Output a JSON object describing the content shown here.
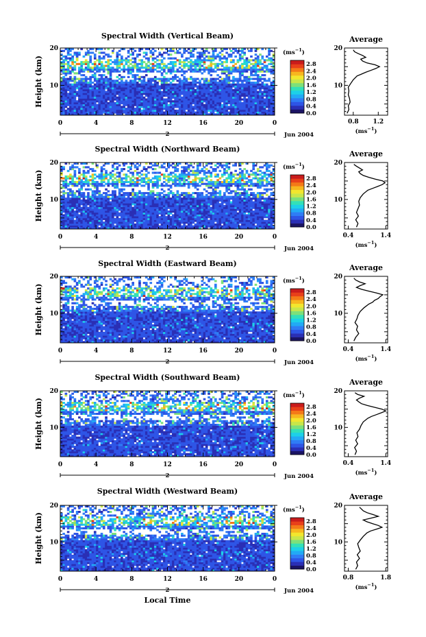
{
  "figure": {
    "xlabel": "Local Time",
    "date_label": "Jun 2004",
    "day_label": "2"
  },
  "colorbar": {
    "unit_base": "(ms",
    "unit_exp": "−1",
    "unit_close": ")",
    "ticks": [
      "2.8",
      "2.4",
      "2.0",
      "1.6",
      "1.2",
      "0.8",
      "0.4",
      "0.0"
    ],
    "range": [
      0.0,
      3.0
    ],
    "colors": [
      "#1b1464",
      "#2a2fb5",
      "#2e55e6",
      "#2f7df5",
      "#22aaf5",
      "#1dd0e8",
      "#33e0b8",
      "#7de07a",
      "#c8e64a",
      "#f2e62e",
      "#f7b71f",
      "#f47a18",
      "#e8401a",
      "#c91c1c"
    ]
  },
  "avg_unit": {
    "base": "(ms",
    "exp": "−1",
    "close": ")"
  },
  "chart_data": [
    {
      "type": "heatmap",
      "title": "Spectral Width (Vertical Beam)",
      "ylabel": "Height (km)",
      "x_ticks": [
        "0",
        "4",
        "8",
        "12",
        "16",
        "20",
        "0"
      ],
      "xlim": [
        0,
        24
      ],
      "y_ticks": [
        "20",
        "10"
      ],
      "ylim": [
        2,
        20
      ],
      "avg": {
        "title": "Average",
        "x_ticks": [
          "0.8",
          "1.2"
        ],
        "xlim": [
          0.66,
          1.35
        ],
        "heights": [
          2.5,
          3.5,
          4.5,
          5.5,
          6.5,
          7.5,
          8.5,
          9.5,
          10.5,
          11.5,
          12.5,
          13.0,
          13.5,
          14.0,
          14.5,
          15.0,
          15.5,
          16.0,
          16.5,
          17.0,
          17.5,
          18.0,
          18.5,
          19.0,
          19.5
        ],
        "values": [
          0.7,
          0.73,
          0.72,
          0.75,
          0.74,
          0.72,
          0.73,
          0.72,
          0.76,
          0.8,
          0.86,
          0.93,
          1.0,
          1.08,
          1.16,
          1.22,
          1.15,
          1.02,
          0.95,
          0.92,
          1.0,
          0.95,
          0.88,
          0.82,
          0.8
        ]
      }
    },
    {
      "type": "heatmap",
      "title": "Spectral Width (Northward Beam)",
      "ylabel": "Height (km)",
      "x_ticks": [
        "0",
        "4",
        "8",
        "12",
        "16",
        "20",
        "0"
      ],
      "xlim": [
        0,
        24
      ],
      "y_ticks": [
        "20",
        "10"
      ],
      "ylim": [
        2,
        20
      ],
      "avg": {
        "title": "Average",
        "x_ticks": [
          "0.4",
          "1.4"
        ],
        "xlim": [
          0.3,
          1.45
        ],
        "heights": [
          2.5,
          3.5,
          4.5,
          5.5,
          6.5,
          7.5,
          8.5,
          9.5,
          10.5,
          11.5,
          12.5,
          13.0,
          13.5,
          14.0,
          14.5,
          15.0,
          15.5,
          16.0,
          16.5,
          17.0,
          17.5,
          18.0,
          18.5,
          19.0,
          19.5
        ],
        "values": [
          0.62,
          0.66,
          0.6,
          0.67,
          0.62,
          0.66,
          0.7,
          0.68,
          0.72,
          0.8,
          0.92,
          1.05,
          1.18,
          1.3,
          1.38,
          1.32,
          1.12,
          0.95,
          0.8,
          0.72,
          0.68,
          0.78,
          0.7,
          0.62,
          0.55
        ]
      }
    },
    {
      "type": "heatmap",
      "title": "Spectral Width (Eastward Beam)",
      "ylabel": "Height (km)",
      "x_ticks": [
        "0",
        "4",
        "8",
        "12",
        "16",
        "20",
        "0"
      ],
      "xlim": [
        0,
        24
      ],
      "y_ticks": [
        "20",
        "10"
      ],
      "ylim": [
        2,
        20
      ],
      "avg": {
        "title": "Average",
        "x_ticks": [
          "0.4",
          "1.4"
        ],
        "xlim": [
          0.3,
          1.45
        ],
        "heights": [
          2.5,
          3.5,
          4.5,
          5.5,
          6.5,
          7.5,
          8.5,
          9.5,
          10.5,
          11.5,
          12.5,
          13.0,
          13.5,
          14.0,
          14.5,
          15.0,
          15.5,
          16.0,
          16.5,
          17.0,
          17.5,
          18.0,
          18.5,
          19.0,
          19.5
        ],
        "values": [
          0.55,
          0.6,
          0.68,
          0.62,
          0.65,
          0.58,
          0.63,
          0.66,
          0.72,
          0.82,
          0.95,
          1.05,
          1.1,
          1.2,
          1.25,
          1.32,
          1.15,
          0.95,
          0.75,
          0.62,
          0.72,
          0.85,
          0.7,
          0.6,
          0.55
        ]
      }
    },
    {
      "type": "heatmap",
      "title": "Spectral Width (Southward Beam)",
      "ylabel": "Height (km)",
      "x_ticks": [
        "0",
        "4",
        "8",
        "12",
        "16",
        "20",
        "0"
      ],
      "xlim": [
        0,
        24
      ],
      "y_ticks": [
        "20",
        "10"
      ],
      "ylim": [
        2,
        20
      ],
      "avg": {
        "title": "Average",
        "x_ticks": [
          "0.4",
          "1.4"
        ],
        "xlim": [
          0.3,
          1.45
        ],
        "heights": [
          2.5,
          3.5,
          4.5,
          5.5,
          6.5,
          7.5,
          8.5,
          9.5,
          10.5,
          11.5,
          12.5,
          13.0,
          13.5,
          14.0,
          14.5,
          15.0,
          15.5,
          16.0,
          16.5,
          17.0,
          17.5,
          18.0,
          18.5,
          19.0,
          19.5
        ],
        "values": [
          0.58,
          0.62,
          0.57,
          0.65,
          0.6,
          0.66,
          0.63,
          0.7,
          0.74,
          0.8,
          0.92,
          1.02,
          1.15,
          1.28,
          1.4,
          1.3,
          1.1,
          0.9,
          0.75,
          0.68,
          0.62,
          0.7,
          0.82,
          0.65,
          0.58
        ]
      }
    },
    {
      "type": "heatmap",
      "title": "Spectral Width (Westward Beam)",
      "ylabel": "Height (km)",
      "x_ticks": [
        "0",
        "4",
        "8",
        "12",
        "16",
        "20",
        "0"
      ],
      "xlim": [
        0,
        24
      ],
      "y_ticks": [
        "20",
        "10"
      ],
      "ylim": [
        2,
        20
      ],
      "avg": {
        "title": "Average",
        "x_ticks": [
          "0.8",
          "1.8"
        ],
        "xlim": [
          0.7,
          1.85
        ],
        "heights": [
          2.5,
          3.5,
          4.5,
          5.5,
          6.5,
          7.5,
          8.5,
          9.5,
          10.5,
          11.5,
          12.5,
          13.0,
          13.5,
          14.0,
          14.5,
          15.0,
          15.5,
          16.0,
          16.5,
          17.0,
          17.5,
          18.0,
          18.5,
          19.0,
          19.5
        ],
        "values": [
          1.0,
          1.05,
          1.02,
          1.1,
          1.04,
          1.12,
          1.08,
          1.05,
          1.12,
          1.2,
          1.3,
          1.4,
          1.55,
          1.7,
          1.6,
          1.45,
          1.3,
          1.2,
          1.4,
          1.6,
          1.45,
          1.3,
          1.2,
          1.15,
          1.1
        ]
      }
    }
  ]
}
